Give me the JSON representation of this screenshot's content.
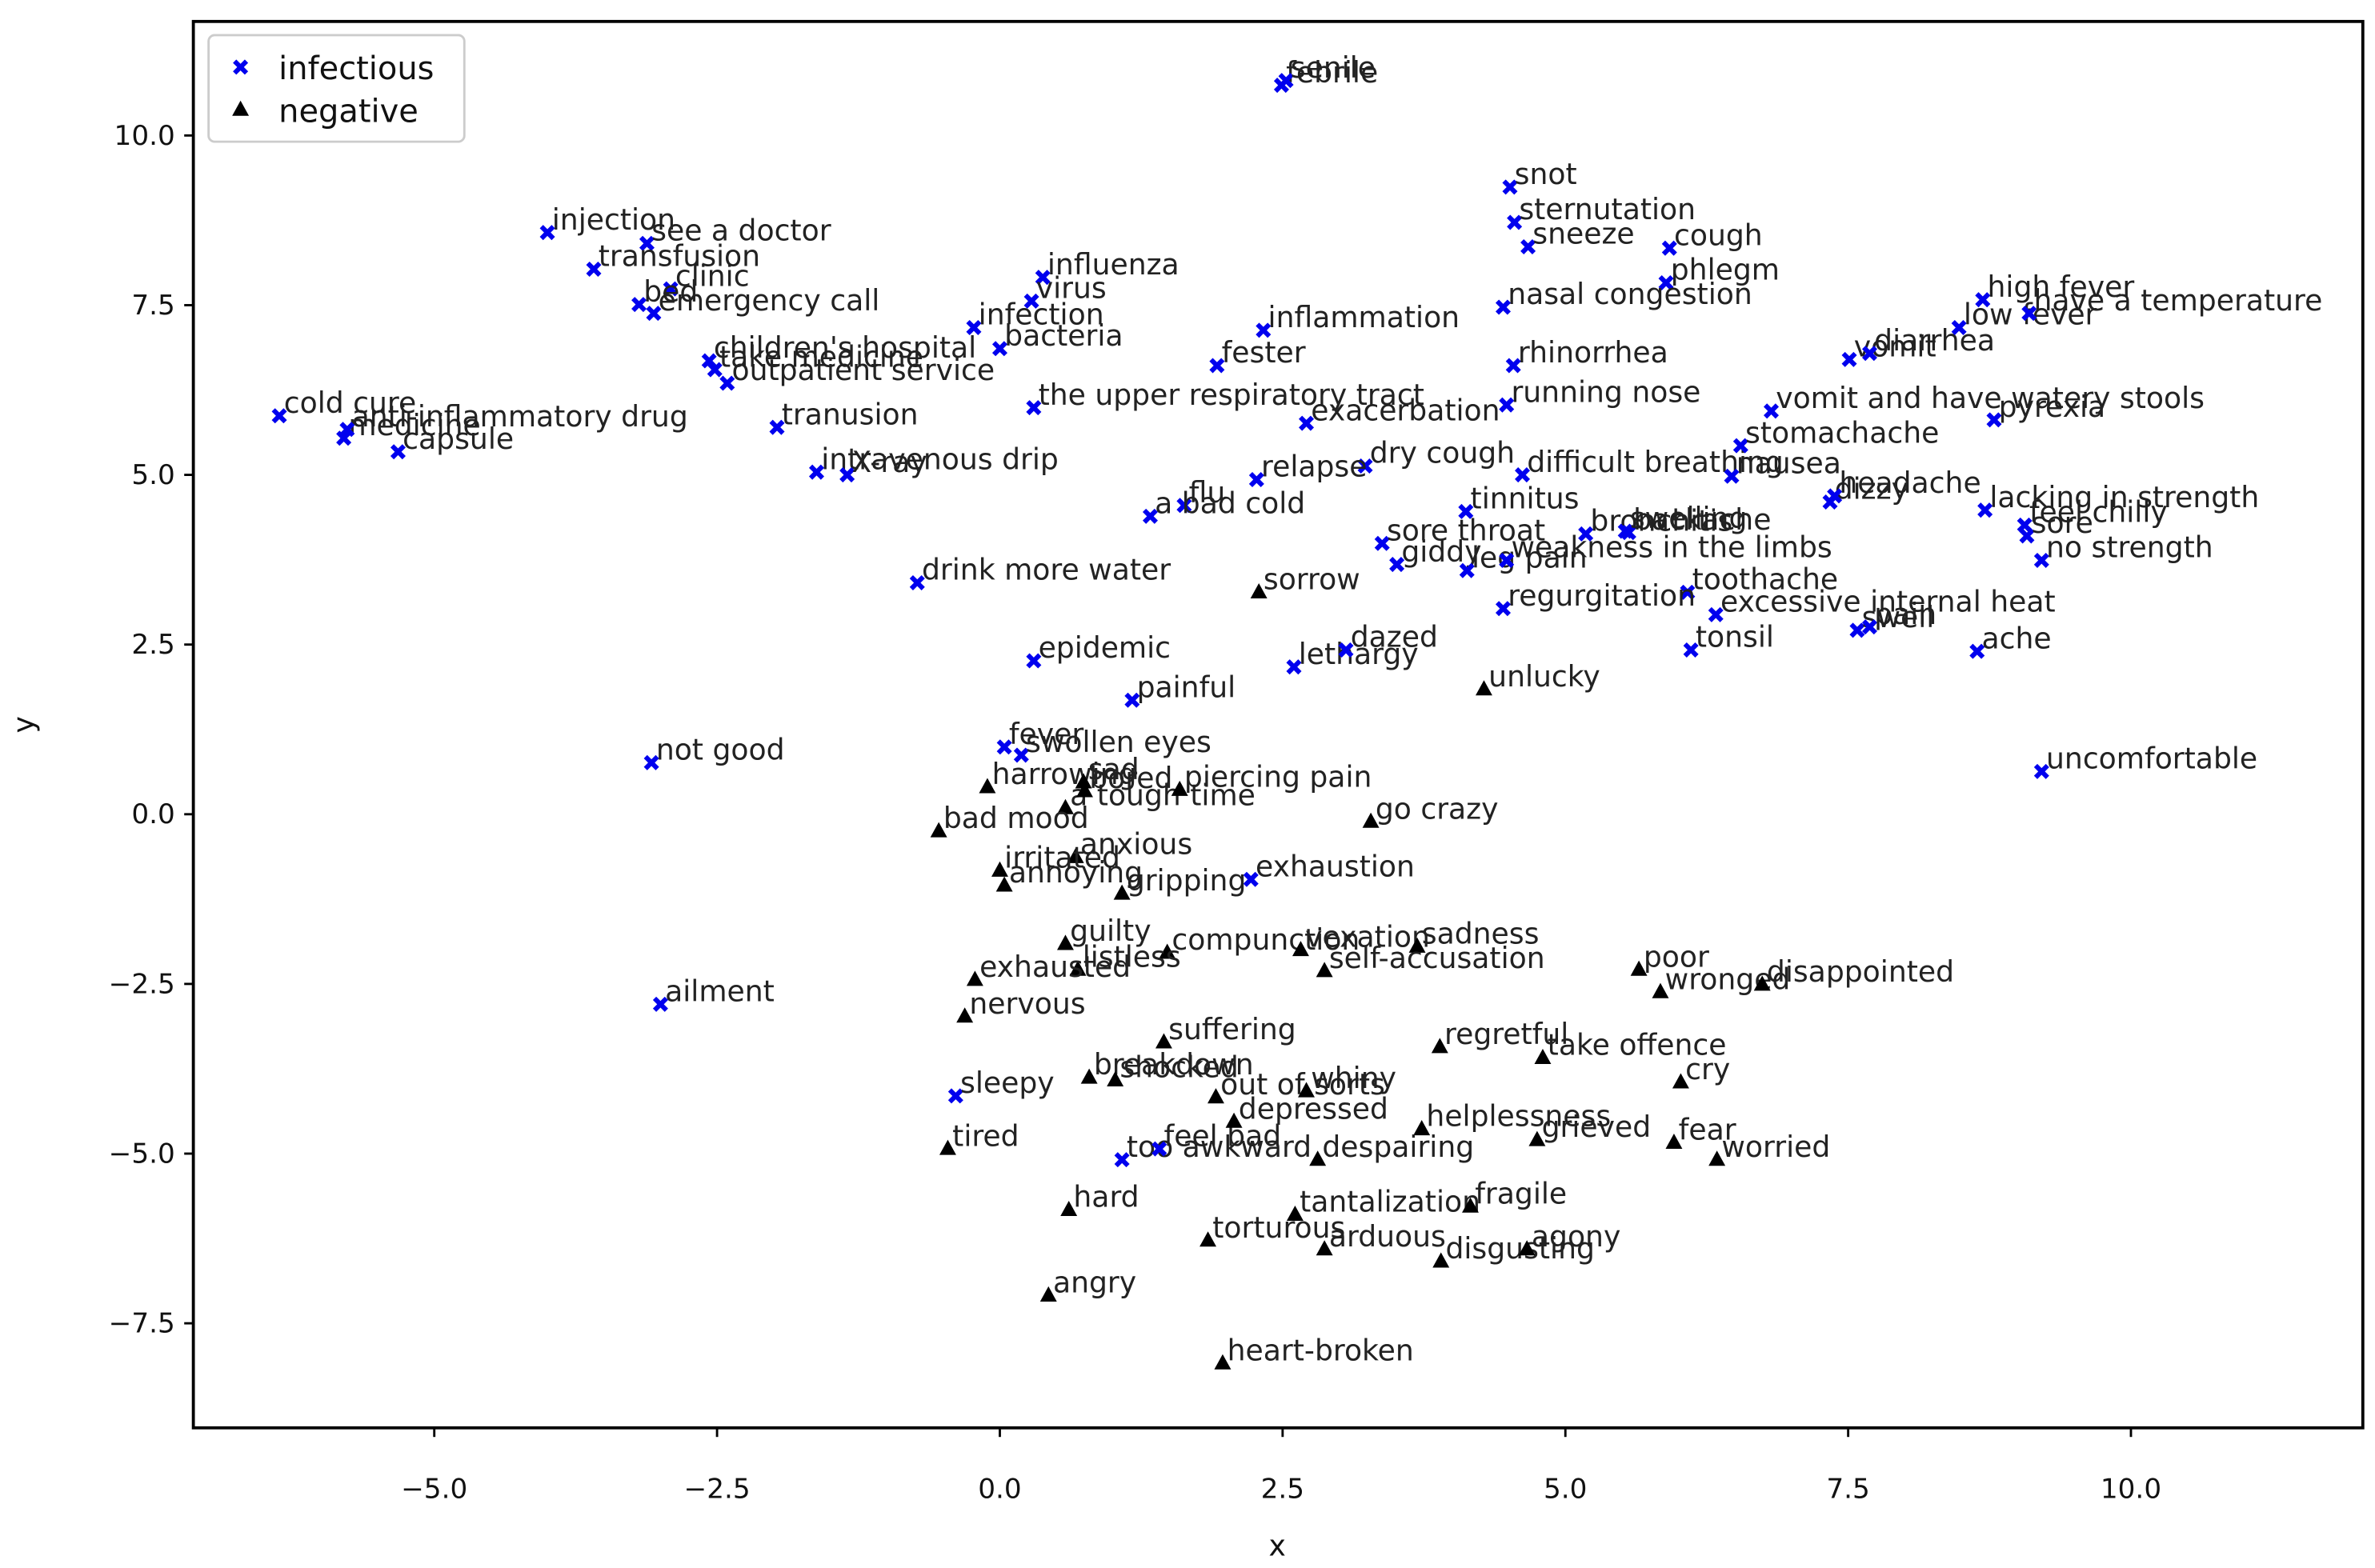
{
  "chart_data": {
    "type": "scatter",
    "x_label": "x",
    "y_label": "y",
    "xlim": [
      -7.13,
      12.05
    ],
    "ylim": [
      -9.04,
      11.68
    ],
    "xticks": [
      {
        "value": -5,
        "label": "−5.0"
      },
      {
        "value": -2.5,
        "label": "−2.5"
      },
      {
        "value": 0,
        "label": "0.0"
      },
      {
        "value": 2.5,
        "label": "2.5"
      },
      {
        "value": 5,
        "label": "5.0"
      },
      {
        "value": 7.5,
        "label": "7.5"
      },
      {
        "value": 10,
        "label": "10.0"
      }
    ],
    "yticks": [
      {
        "value": -7.5,
        "label": "−7.5"
      },
      {
        "value": -5,
        "label": "−5.0"
      },
      {
        "value": -2.5,
        "label": "−2.5"
      },
      {
        "value": 0,
        "label": "0.0"
      },
      {
        "value": 2.5,
        "label": "2.5"
      },
      {
        "value": 5,
        "label": "5.0"
      },
      {
        "value": 7.5,
        "label": "7.5"
      },
      {
        "value": 10,
        "label": "10.0"
      }
    ],
    "grid": false,
    "legend": "upper left",
    "series": [
      {
        "name": "infectious",
        "color": "#0000ee",
        "marker": "x",
        "labels": [
          "febrile",
          "senile",
          "snot",
          "sternutation",
          "sneeze",
          "cough",
          "phlegm",
          "nasal congestion",
          "injection",
          "see a doctor",
          "transfusion",
          "clinic",
          "bed",
          "emergency call",
          "influenza",
          "virus",
          "infection",
          "bacteria",
          "children's hospital",
          "take medicine",
          "outpatient service",
          "inflammation",
          "fester",
          "rhinorrhea",
          "running nose",
          "the upper respiratory tract",
          "exacerbation",
          "cold cure",
          "medicine",
          "anti-inflammatory drug",
          "capsule",
          "tranusion",
          "intravenous drip",
          "X-ray",
          "dry cough",
          "difficult breathing",
          "relapse",
          "flu",
          "a bad cold",
          "tinnitus",
          "sore throat",
          "giddy",
          "leg pain",
          "weakness in the limbs",
          "bronchitis",
          "backache",
          "swelling",
          "vomit and have watery stools",
          "pyrexia",
          "stomachache",
          "nausea",
          "dizzy",
          "headache",
          "vomit",
          "diarrhea",
          "low fever",
          "high fever",
          "have a temperature",
          "lacking in strength",
          "feel chilly",
          "sore",
          "no strength",
          "toothache",
          "excessive internal heat",
          "swell",
          "pain",
          "regurgitation",
          "tonsil",
          "ache",
          "drink more water",
          "epidemic",
          "lethargy",
          "dazed",
          "painful",
          "fever",
          "swollen eyes",
          "not good",
          "uncomfortable",
          "exhaustion",
          "ailment",
          "sleepy",
          "too awkward",
          "feel bad"
        ],
        "x": [
          2.49,
          2.53,
          4.51,
          4.55,
          4.67,
          5.92,
          5.89,
          4.45,
          -4.0,
          -3.12,
          -3.59,
          -2.91,
          -3.19,
          -3.06,
          0.38,
          0.28,
          -0.23,
          0.0,
          -2.57,
          -2.52,
          -2.41,
          2.33,
          1.92,
          4.54,
          4.48,
          0.3,
          2.71,
          -6.37,
          -5.8,
          -5.77,
          -5.32,
          -1.97,
          -1.62,
          -1.35,
          3.23,
          4.62,
          2.27,
          1.63,
          1.33,
          4.12,
          3.38,
          3.51,
          4.13,
          4.48,
          5.18,
          5.56,
          5.53,
          6.82,
          8.79,
          6.55,
          6.47,
          7.34,
          7.38,
          7.51,
          7.69,
          8.48,
          8.69,
          9.1,
          8.71,
          9.06,
          9.08,
          9.21,
          6.08,
          6.33,
          7.58,
          7.69,
          4.45,
          6.11,
          8.64,
          -0.73,
          0.3,
          2.6,
          3.06,
          1.17,
          0.04,
          0.19,
          -3.08,
          9.21,
          2.22,
          -3.0,
          -0.39,
          1.08,
          1.41
        ],
        "values": [
          10.74,
          10.81,
          9.24,
          8.72,
          8.36,
          8.34,
          7.83,
          7.47,
          8.57,
          8.41,
          8.03,
          7.74,
          7.51,
          7.38,
          7.91,
          7.56,
          7.17,
          6.86,
          6.68,
          6.55,
          6.35,
          7.13,
          6.61,
          6.61,
          6.03,
          5.99,
          5.76,
          5.87,
          5.54,
          5.67,
          5.34,
          5.7,
          5.04,
          5.0,
          5.13,
          5.0,
          4.93,
          4.55,
          4.39,
          4.46,
          3.99,
          3.68,
          3.59,
          3.74,
          4.13,
          4.15,
          4.17,
          5.94,
          5.81,
          5.43,
          4.98,
          4.6,
          4.69,
          6.7,
          6.79,
          7.17,
          7.58,
          7.38,
          4.48,
          4.26,
          4.1,
          3.74,
          3.27,
          2.94,
          2.71,
          2.76,
          3.03,
          2.42,
          2.4,
          3.41,
          2.26,
          2.17,
          2.42,
          1.68,
          0.99,
          0.87,
          0.76,
          0.63,
          -0.96,
          -2.8,
          -4.15,
          -5.09,
          -4.93
        ]
      },
      {
        "name": "negative",
        "color": "#000000",
        "marker": "triangle",
        "labels": [
          "sorrow",
          "unlucky",
          "harrowing",
          "sad",
          "a tough time",
          "bored",
          "piercing pain",
          "go crazy",
          "bad mood",
          "anxious",
          "irritated",
          "annoying",
          "gripping",
          "guilty",
          "compunction",
          "listless",
          "exhausted",
          "vexation",
          "sadness",
          "self-accusation",
          "poor",
          "wronged",
          "disappointed",
          "nervous",
          "suffering",
          "regretful",
          "take offence",
          "breakdown",
          "shocked",
          "out of sorts",
          "whiny",
          "depressed",
          "cry",
          "helplessness",
          "grieved",
          "fear",
          "worried",
          "despairing",
          "tired",
          "hard",
          "tantalization",
          "fragile",
          "torturous",
          "arduous",
          "disgusting",
          "agony",
          "angry",
          "heart-broken"
        ],
        "x": [
          2.29,
          4.28,
          -0.11,
          0.74,
          0.58,
          0.75,
          1.59,
          3.28,
          -0.54,
          0.67,
          0.0,
          0.04,
          1.08,
          0.58,
          1.48,
          0.69,
          -0.22,
          2.66,
          3.69,
          2.87,
          5.65,
          5.84,
          6.74,
          -0.31,
          1.45,
          3.89,
          4.8,
          0.79,
          1.02,
          1.91,
          2.71,
          2.07,
          6.02,
          3.73,
          4.75,
          5.96,
          6.34,
          2.81,
          -0.46,
          0.61,
          2.61,
          4.16,
          1.84,
          2.87,
          3.9,
          4.66,
          0.43,
          1.97
        ],
        "values": [
          3.27,
          1.84,
          0.4,
          0.47,
          0.09,
          0.34,
          0.36,
          -0.11,
          -0.25,
          -0.63,
          -0.83,
          -1.05,
          -1.17,
          -1.91,
          -2.04,
          -2.29,
          -2.44,
          -2.0,
          -1.95,
          -2.31,
          -2.29,
          -2.62,
          -2.51,
          -2.98,
          -3.36,
          -3.43,
          -3.59,
          -3.88,
          -3.92,
          -4.17,
          -4.08,
          -4.53,
          -3.95,
          -4.64,
          -4.8,
          -4.84,
          -5.09,
          -5.09,
          -4.93,
          -5.83,
          -5.9,
          -5.78,
          -6.28,
          -6.41,
          -6.59,
          -6.41,
          -7.09,
          -8.09
        ]
      }
    ]
  }
}
